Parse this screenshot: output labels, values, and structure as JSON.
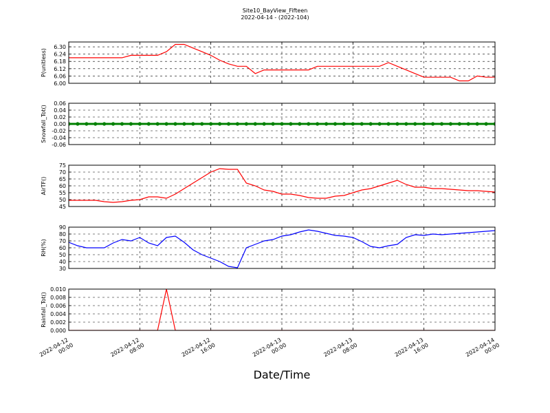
{
  "chart_data": {
    "type": "line",
    "title": "Site10_BayView_Fifteen",
    "subtitle": "2022-04-14 - (2022-104)",
    "xlabel": "Date/Time",
    "grid": true,
    "xlim": [
      "2022-04-12 00:00",
      "2022-04-14 00:00"
    ],
    "xticks": [
      "2022-04-12 00:00",
      "2022-04-12 08:00",
      "2022-04-12 16:00",
      "2022-04-13 00:00",
      "2022-04-13 08:00",
      "2022-04-13 16:00",
      "2022-04-14 00:00"
    ],
    "x": [
      "2022-04-12 00:00",
      "2022-04-12 01:00",
      "2022-04-12 02:00",
      "2022-04-12 03:00",
      "2022-04-12 04:00",
      "2022-04-12 05:00",
      "2022-04-12 06:00",
      "2022-04-12 07:00",
      "2022-04-12 08:00",
      "2022-04-12 09:00",
      "2022-04-12 10:00",
      "2022-04-12 11:00",
      "2022-04-12 12:00",
      "2022-04-12 13:00",
      "2022-04-12 14:00",
      "2022-04-12 15:00",
      "2022-04-12 16:00",
      "2022-04-12 17:00",
      "2022-04-12 18:00",
      "2022-04-12 19:00",
      "2022-04-12 20:00",
      "2022-04-12 21:00",
      "2022-04-12 22:00",
      "2022-04-12 23:00",
      "2022-04-13 00:00",
      "2022-04-13 01:00",
      "2022-04-13 02:00",
      "2022-04-13 03:00",
      "2022-04-13 04:00",
      "2022-04-13 05:00",
      "2022-04-13 06:00",
      "2022-04-13 07:00",
      "2022-04-13 08:00",
      "2022-04-13 09:00",
      "2022-04-13 10:00",
      "2022-04-13 11:00",
      "2022-04-13 12:00",
      "2022-04-13 13:00",
      "2022-04-13 14:00",
      "2022-04-13 15:00",
      "2022-04-13 16:00",
      "2022-04-13 17:00",
      "2022-04-13 18:00",
      "2022-04-13 19:00",
      "2022-04-13 20:00",
      "2022-04-13 21:00",
      "2022-04-13 22:00",
      "2022-04-13 23:00",
      "2022-04-14 00:00"
    ],
    "panels": [
      {
        "ylabel": "P(unitless)",
        "color": "#ff0000",
        "marker": false,
        "ylim": [
          6.0,
          6.34
        ],
        "yticks": [
          {
            "value": 6.0,
            "label": "6.00"
          },
          6.06,
          6.12,
          6.18,
          6.24,
          {
            "value": 6.3,
            "label": "6.30"
          }
        ],
        "values": [
          6.21,
          6.21,
          6.21,
          6.21,
          6.21,
          6.21,
          6.21,
          6.23,
          6.23,
          6.23,
          6.23,
          6.26,
          6.32,
          6.32,
          6.29,
          6.26,
          6.23,
          6.19,
          6.16,
          6.14,
          6.14,
          6.08,
          6.11,
          6.11,
          6.11,
          6.11,
          6.11,
          6.11,
          6.14,
          6.14,
          6.14,
          6.14,
          6.14,
          6.14,
          6.14,
          6.14,
          6.17,
          6.14,
          6.11,
          6.08,
          6.05,
          6.05,
          6.05,
          6.05,
          6.02,
          6.02,
          6.06,
          6.05,
          6.05
        ]
      },
      {
        "ylabel": "Snowfall_Tot()",
        "color": "#008000",
        "marker": true,
        "ylim": [
          -0.06,
          0.06
        ],
        "yticks": [
          -0.06,
          -0.04,
          -0.02,
          {
            "value": 0,
            "label": "0.00"
          },
          0.02,
          0.04,
          0.06
        ],
        "values": [
          0,
          0,
          0,
          0,
          0,
          0,
          0,
          0,
          0,
          0,
          0,
          0,
          0,
          0,
          0,
          0,
          0,
          0,
          0,
          0,
          0,
          0,
          0,
          0,
          0,
          0,
          0,
          0,
          0,
          0,
          0,
          0,
          0,
          0,
          0,
          0,
          0,
          0,
          0,
          0,
          0,
          0,
          0,
          0,
          0,
          0,
          0,
          0,
          0
        ]
      },
      {
        "ylabel": "AirTF()",
        "color": "#ff0000",
        "marker": false,
        "ylim": [
          45,
          75
        ],
        "yticks": [
          45,
          50,
          55,
          60,
          65,
          70,
          75
        ],
        "values": [
          49.5,
          49.5,
          49.5,
          49.5,
          48.5,
          48,
          48.5,
          49.5,
          50,
          52,
          52,
          51,
          54,
          58,
          62,
          66,
          70,
          72.5,
          72,
          72,
          62,
          60,
          57,
          56,
          54,
          54,
          53,
          51.5,
          51,
          51,
          52.5,
          53,
          55,
          57,
          58,
          60,
          62,
          64,
          61,
          59,
          59,
          58,
          58,
          57.5,
          57,
          56.5,
          56.5,
          56,
          55.5
        ]
      },
      {
        "ylabel": "RH(%)",
        "color": "#0000ff",
        "marker": false,
        "ylim": [
          30,
          90
        ],
        "yticks": [
          30,
          40,
          50,
          60,
          70,
          80,
          90
        ],
        "values": [
          68,
          63,
          60,
          60,
          60,
          67,
          72,
          70,
          75,
          67,
          63,
          75,
          77,
          68,
          57,
          50,
          45,
          40,
          33,
          31,
          60,
          65,
          70,
          72,
          77,
          79,
          83,
          86,
          84,
          81,
          78,
          77,
          75,
          69,
          62,
          60,
          63,
          65,
          75,
          79,
          78,
          80,
          79,
          80,
          81,
          82,
          83,
          84,
          85
        ]
      },
      {
        "ylabel": "Rainfall_Tot()",
        "color": "#ff0000",
        "marker": false,
        "ylim": [
          0,
          0.01
        ],
        "yticks": [
          {
            "value": 0,
            "label": "0.000"
          },
          0.002,
          0.004,
          0.006,
          0.008,
          {
            "value": 0.01,
            "label": "0.010"
          }
        ],
        "values": [
          0,
          0,
          0,
          0,
          0,
          0,
          0,
          0,
          0,
          0,
          0,
          0.01,
          0,
          0,
          0,
          0,
          0,
          0,
          0,
          0,
          0,
          0,
          0,
          0,
          0,
          0,
          0,
          0,
          0,
          0,
          0,
          0,
          0,
          0,
          0,
          0,
          0,
          0,
          0,
          0,
          0,
          0,
          0,
          0,
          0,
          0,
          0,
          0,
          0
        ]
      }
    ]
  }
}
